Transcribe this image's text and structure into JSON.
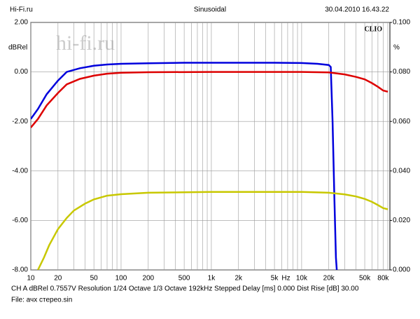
{
  "chart_data": {
    "type": "line",
    "header_left": "Hi-Fi.ru",
    "title": "Sinusoidal",
    "header_right": "30.04.2010 16.43.22",
    "ylabel": "dBRel",
    "y2label": "%",
    "brand": "CLIO",
    "watermark": "hi-fi.ru",
    "x_unit": "Hz",
    "log_x": true,
    "grid": true,
    "xlim": [
      10,
      95000
    ],
    "xticks": [
      10,
      20,
      50,
      100,
      200,
      500,
      {
        "value": 1000,
        "label": "1k"
      },
      {
        "value": 2000,
        "label": "2k"
      },
      {
        "value": 5000,
        "label": "5k"
      },
      {
        "value": 10000,
        "label": "10k"
      },
      {
        "value": 20000,
        "label": "20k"
      },
      {
        "value": 50000,
        "label": "50k"
      },
      {
        "value": 80000,
        "label": "80k"
      }
    ],
    "xminor": [
      30,
      40,
      60,
      70,
      80,
      90,
      300,
      400,
      600,
      700,
      800,
      900,
      3000,
      4000,
      6000,
      7000,
      8000,
      9000,
      30000,
      40000,
      60000,
      70000,
      90000
    ],
    "ylim": [
      -8,
      2
    ],
    "yticks": [
      {
        "value": 2,
        "label": "2.00"
      },
      {
        "value": 0,
        "label": "0.00"
      },
      {
        "value": -2,
        "label": "-2.00"
      },
      {
        "value": -4,
        "label": "-4.00"
      },
      {
        "value": -6,
        "label": "-6.00"
      },
      {
        "value": -8,
        "label": "-8.00"
      }
    ],
    "y2lim": [
      0,
      0.1
    ],
    "y2ticks": [
      {
        "value": 0.1,
        "label": "0.100"
      },
      {
        "value": 0.08,
        "label": "0.080"
      },
      {
        "value": 0.06,
        "label": "0.060"
      },
      {
        "value": 0.04,
        "label": "0.040"
      },
      {
        "value": 0.02,
        "label": "0.020"
      },
      {
        "value": 0,
        "label": "0.000"
      }
    ],
    "series": [
      {
        "color": "#0000dd",
        "axis": "y",
        "x": [
          10,
          12,
          15,
          20,
          25,
          35,
          50,
          70,
          100,
          200,
          500,
          1000,
          5000,
          10000,
          15000,
          20000,
          21000,
          22000,
          23000,
          24000,
          24500
        ],
        "values": [
          -1.9,
          -1.5,
          -0.9,
          -0.35,
          0.0,
          0.15,
          0.25,
          0.3,
          0.33,
          0.35,
          0.37,
          0.37,
          0.37,
          0.36,
          0.33,
          0.28,
          0.2,
          -2,
          -5,
          -7.5,
          -8
        ]
      },
      {
        "color": "#dd0000",
        "axis": "y",
        "x": [
          10,
          12,
          15,
          20,
          25,
          35,
          50,
          70,
          100,
          200,
          1000,
          10000,
          20000,
          30000,
          40000,
          50000,
          60000,
          70000,
          80000,
          90000
        ],
        "values": [
          -2.25,
          -1.9,
          -1.35,
          -0.85,
          -0.5,
          -0.28,
          -0.15,
          -0.07,
          -0.03,
          -0.01,
          0,
          0,
          -0.02,
          -0.1,
          -0.2,
          -0.3,
          -0.45,
          -0.6,
          -0.75,
          -0.8
        ]
      },
      {
        "color": "#c8c800",
        "axis": "y2",
        "x": [
          12,
          14,
          16,
          20,
          25,
          30,
          40,
          50,
          70,
          100,
          200,
          1000,
          10000,
          20000,
          30000,
          40000,
          50000,
          60000,
          70000,
          80000,
          90000
        ],
        "values": [
          0,
          0.005,
          0.01,
          0.0165,
          0.021,
          0.024,
          0.0268,
          0.0285,
          0.03,
          0.0306,
          0.0312,
          0.0315,
          0.0315,
          0.0312,
          0.0305,
          0.0297,
          0.0287,
          0.0275,
          0.0262,
          0.025,
          0.0245
        ]
      }
    ],
    "footer_1": "CH A   dBRel 0.7557V   Resolution 1/24 Octave   1/3 Octave   192kHz   Stepped   Delay [ms] 0.000   Dist Rise [dB] 30.00",
    "footer_2": "File: ачх стерео.sin"
  }
}
